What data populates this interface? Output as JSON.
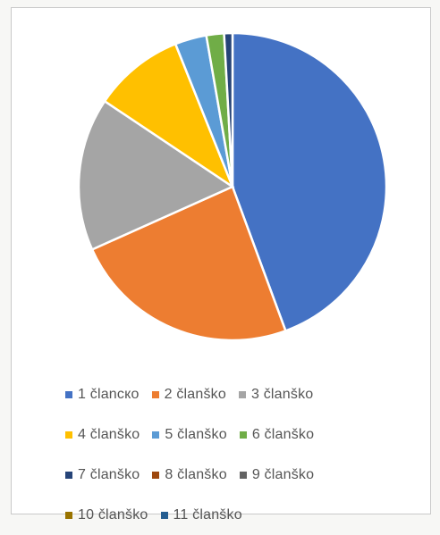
{
  "chart_data": {
    "type": "pie",
    "title": "",
    "categories": [
      "1 članско",
      "2 članško",
      "3 članško",
      "4 članško",
      "5 članško",
      "6 članško",
      "7 članško",
      "8 članško",
      "9 članško",
      "10 članško",
      "11 članško"
    ],
    "values": [
      45.5,
      24.5,
      16.5,
      9.8,
      3.4,
      1.9,
      0.9,
      0.0,
      0.0,
      0.0,
      0.0
    ],
    "colors": [
      "#4472c4",
      "#ed7d31",
      "#a5a5a5",
      "#ffc000",
      "#5b9bd5",
      "#70ad47",
      "#264478",
      "#9e480e",
      "#636363",
      "#997300",
      "#255e91"
    ],
    "legend_position": "bottom"
  }
}
